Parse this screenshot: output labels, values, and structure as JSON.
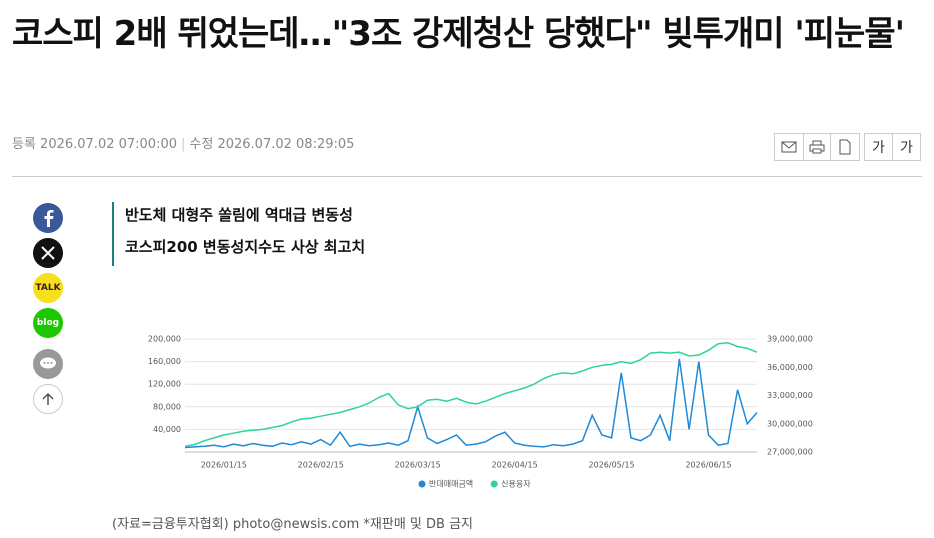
{
  "header": {
    "title": "코스피 2배 뛰었는데…\"3조 강제청산 당했다\" 빚투개미 '피눈물'",
    "registered": "등록 2026.07.02 07:00:00",
    "modified": "수정 2026.07.02 08:29:05"
  },
  "toolbar": {
    "font_down": "가",
    "font_up": "가"
  },
  "share": {
    "kakao": "TALK",
    "blog": "blog"
  },
  "subheads": [
    "반도체 대형주 쏠림에 역대급 변동성",
    "코스피200 변동성지수도 사상 최고치"
  ],
  "chart_data": {
    "type": "line",
    "categories": [
      null,
      null,
      null,
      null,
      "2026/01/15",
      null,
      null,
      null,
      null,
      null,
      null,
      null,
      null,
      null,
      "2026/02/15",
      null,
      null,
      null,
      null,
      null,
      null,
      null,
      null,
      null,
      "2026/03/15",
      null,
      null,
      null,
      null,
      null,
      null,
      null,
      null,
      null,
      "2026/04/15",
      null,
      null,
      null,
      null,
      null,
      null,
      null,
      null,
      null,
      "2026/05/15",
      null,
      null,
      null,
      null,
      null,
      null,
      null,
      null,
      null,
      "2026/06/15",
      null,
      null,
      null,
      null,
      null
    ],
    "series": [
      {
        "name": "반대매매금액",
        "color": "#1f8ad8",
        "axis": "y",
        "values": [
          8000,
          9000,
          10000,
          12000,
          9000,
          14000,
          11000,
          15000,
          12000,
          10000,
          16000,
          13000,
          18000,
          14000,
          22000,
          12000,
          35000,
          10000,
          14000,
          11000,
          13000,
          16000,
          12000,
          20000,
          80000,
          25000,
          15000,
          22000,
          30000,
          12000,
          14000,
          18000,
          28000,
          35000,
          16000,
          12000,
          10000,
          9000,
          13000,
          11000,
          14000,
          20000,
          65000,
          30000,
          25000,
          140000,
          25000,
          20000,
          30000,
          65000,
          20000,
          165000,
          40000,
          160000,
          30000,
          12000,
          15000,
          110000,
          50000,
          70000
        ]
      },
      {
        "name": "신용융자",
        "color": "#2fd39b",
        "axis": "y2",
        "values": [
          27600000,
          27800000,
          28200000,
          28500000,
          28800000,
          29000000,
          29200000,
          29300000,
          29400000,
          29600000,
          29800000,
          30200000,
          30500000,
          30600000,
          30800000,
          31000000,
          31200000,
          31500000,
          31800000,
          32200000,
          32800000,
          33200000,
          32000000,
          31600000,
          31800000,
          32500000,
          32600000,
          32400000,
          32700000,
          32300000,
          32100000,
          32400000,
          32800000,
          33200000,
          33500000,
          33800000,
          34200000,
          34800000,
          35200000,
          35400000,
          35300000,
          35600000,
          36000000,
          36200000,
          36300000,
          36600000,
          36400000,
          36800000,
          37500000,
          37600000,
          37500000,
          37600000,
          37200000,
          37300000,
          37800000,
          38500000,
          38600000,
          38200000,
          38000000,
          37600000
        ]
      }
    ],
    "ylim": [
      0,
      200000
    ],
    "yticks": [
      {
        "value": 40000,
        "label": "40,000"
      },
      {
        "value": 80000,
        "label": "80,000"
      },
      {
        "value": 120000,
        "label": "120,000"
      },
      {
        "value": 160000,
        "label": "160,000"
      },
      {
        "value": 200000,
        "label": "200,000"
      }
    ],
    "y2lim": [
      27000000,
      39000000
    ],
    "y2ticks": [
      {
        "value": 27000000,
        "label": "27,000,000"
      },
      {
        "value": 30000000,
        "label": "30,000,000"
      },
      {
        "value": 33000000,
        "label": "33,000,000"
      },
      {
        "value": 36000000,
        "label": "36,000,000"
      },
      {
        "value": 39000000,
        "label": "39,000,000"
      }
    ],
    "grid": true,
    "legend": "bottom"
  },
  "caption": "(자료=금융투자협회) photo@newsis.com *재판매 및 DB 금지"
}
